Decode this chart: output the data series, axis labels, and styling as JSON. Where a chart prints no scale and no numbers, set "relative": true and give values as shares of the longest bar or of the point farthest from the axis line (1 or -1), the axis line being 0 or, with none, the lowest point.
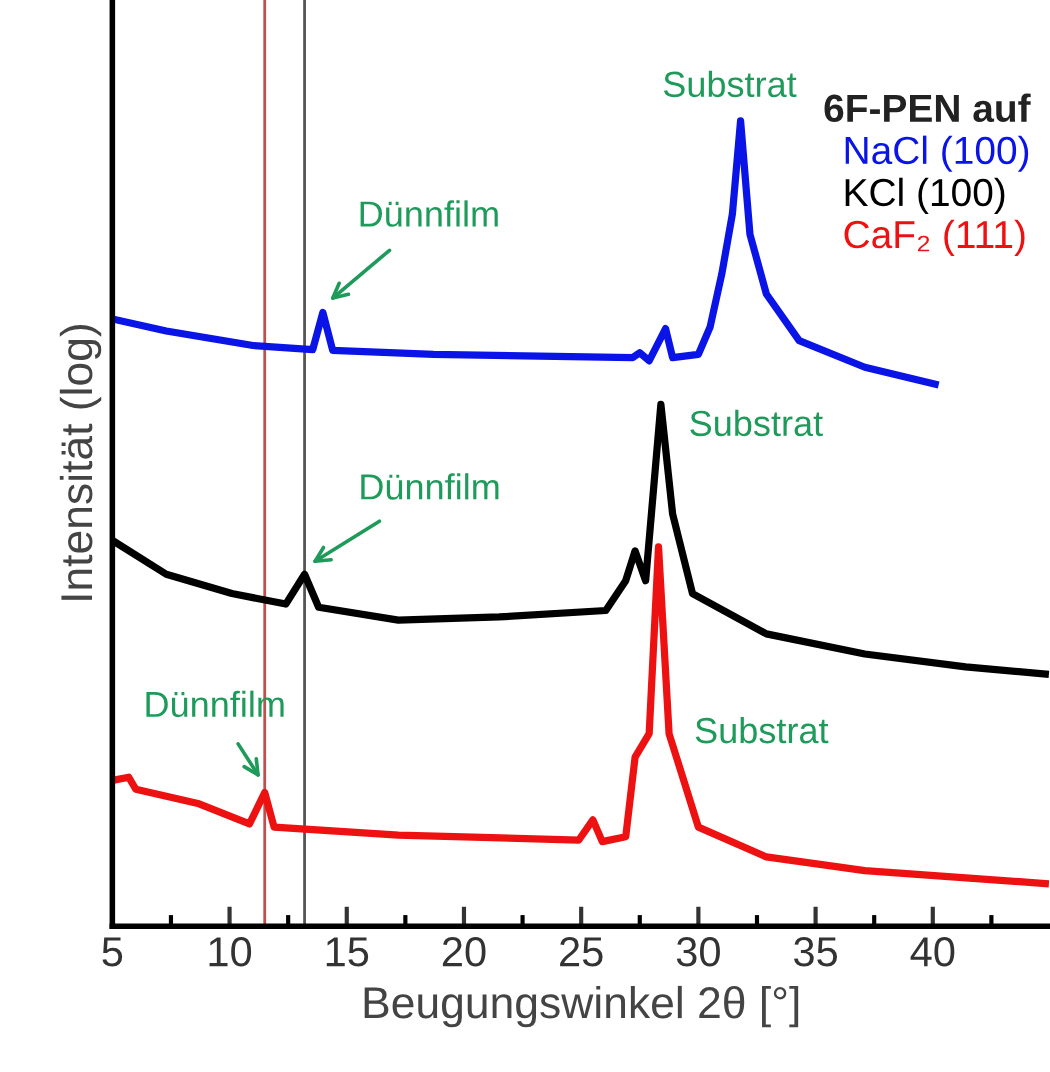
{
  "chart_data": {
    "type": "line",
    "relative": true,
    "xlabel": "Beugungswinkel 2θ [°]",
    "ylabel": "Intensität (log)",
    "legend_title": "6F-PEN auf",
    "legend": "top right",
    "grid": false,
    "marker": "none",
    "line_style": "solid",
    "xlim": [
      5,
      45
    ],
    "xticks": [
      5,
      10,
      15,
      20,
      25,
      30,
      35,
      40
    ],
    "series": [
      {
        "name": "NaCl (100)",
        "color": "#0a14e6",
        "x": [
          5.0,
          7.3,
          11.0,
          13.55,
          13.98,
          14.4,
          18.7,
          27.2,
          27.5,
          27.9,
          28.6,
          28.9,
          30.0,
          30.5,
          31.0,
          31.45,
          31.8,
          32.2,
          32.9,
          34.3,
          37.1,
          40.1
        ],
        "values": [
          0.754,
          0.739,
          0.721,
          0.716,
          0.762,
          0.715,
          0.71,
          0.706,
          0.712,
          0.702,
          0.742,
          0.706,
          0.71,
          0.744,
          0.81,
          0.884,
          1.0,
          0.859,
          0.785,
          0.727,
          0.694,
          0.673
        ]
      },
      {
        "name": "KCl (100)",
        "color": "#000000",
        "x": [
          5.0,
          7.3,
          10.1,
          12.4,
          13.2,
          13.8,
          17.2,
          21.5,
          26.05,
          26.9,
          27.3,
          27.75,
          28.4,
          28.9,
          29.75,
          32.9,
          37.1,
          41.4,
          44.8
        ],
        "values": [
          0.479,
          0.437,
          0.413,
          0.4,
          0.437,
          0.396,
          0.38,
          0.384,
          0.392,
          0.429,
          0.466,
          0.429,
          0.648,
          0.512,
          0.413,
          0.363,
          0.338,
          0.322,
          0.313
        ]
      },
      {
        "name": "CaF₂ (111)",
        "color": "#ee1111",
        "x": [
          5.0,
          5.7,
          6.0,
          8.7,
          10.85,
          11.5,
          11.9,
          17.2,
          24.9,
          25.5,
          25.9,
          26.9,
          27.3,
          27.9,
          28.3,
          28.75,
          30.0,
          32.9,
          37.1,
          44.8
        ],
        "values": [
          0.181,
          0.185,
          0.17,
          0.152,
          0.127,
          0.166,
          0.123,
          0.113,
          0.107,
          0.132,
          0.105,
          0.111,
          0.21,
          0.239,
          0.471,
          0.239,
          0.123,
          0.086,
          0.069,
          0.053
        ]
      }
    ],
    "ref_lines": [
      {
        "axis": "x",
        "value": 11.5,
        "color": "#c0504d"
      },
      {
        "axis": "x",
        "value": 13.2,
        "color": "#555555"
      }
    ],
    "annotations": [
      {
        "text": "Substrat",
        "x": 31.8,
        "y": 1.0
      },
      {
        "text": "Dünnfilm",
        "x": 14.0,
        "y": 0.77
      },
      {
        "text": "Substrat",
        "x": 28.4,
        "y": 0.648
      },
      {
        "text": "Dünnfilm",
        "x": 13.2,
        "y": 0.445
      },
      {
        "text": "Substrat",
        "x": 28.75,
        "y": 0.239
      },
      {
        "text": "Dünnfilm",
        "x": 11.5,
        "y": 0.175
      }
    ]
  }
}
